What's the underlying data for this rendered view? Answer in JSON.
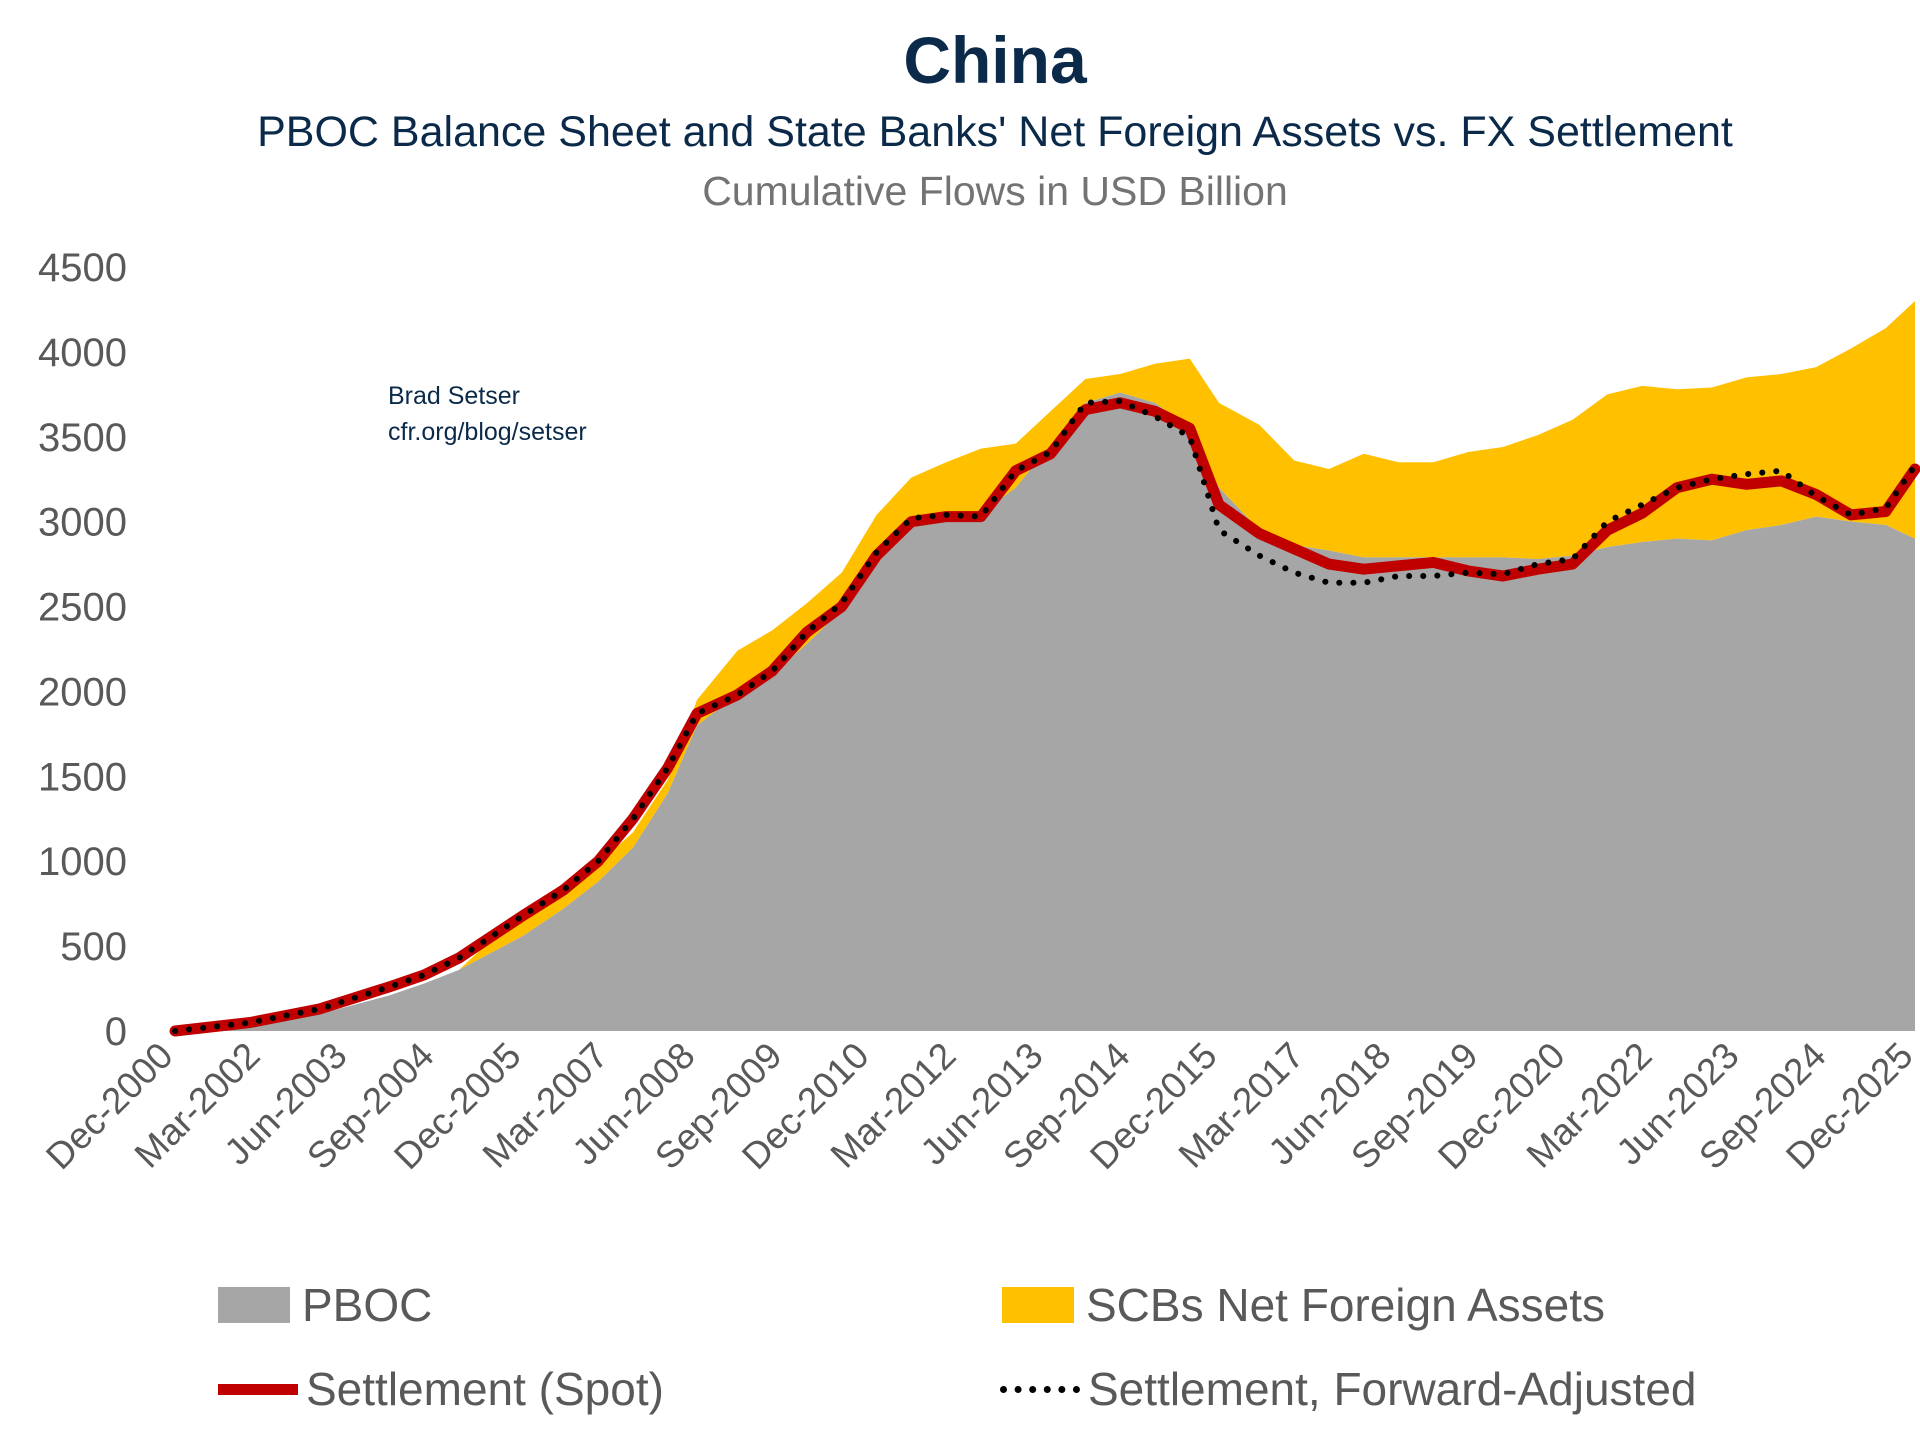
{
  "header": {
    "title": "China",
    "subtitle": "PBOC Balance Sheet and State Banks' Net Foreign Assets vs. FX Settlement",
    "units": "Cumulative Flows in USD Billion"
  },
  "attribution": {
    "author": "Brad Setser",
    "url": "cfr.org/blog/setser"
  },
  "colors": {
    "pboc": "#a6a6a6",
    "scb": "#ffc000",
    "settlement_spot": "#c00000",
    "settlement_forward": "#000000",
    "title": "#0b2a4a",
    "axis_text": "#595959"
  },
  "chart_data": {
    "type": "area",
    "title": "China",
    "subtitle": "PBOC Balance Sheet and State Banks' Net Foreign Assets vs. FX Settlement",
    "ylabel": "Cumulative Flows in USD Billion",
    "xlabel": "",
    "ylim": [
      0,
      4500
    ],
    "xlim": [
      2000.92,
      2025.92
    ],
    "yticks": [
      0,
      500,
      1000,
      1500,
      2000,
      2500,
      3000,
      3500,
      4000,
      4500
    ],
    "xtick_labels": [
      "Dec-2000",
      "Mar-2002",
      "Jun-2003",
      "Sep-2004",
      "Dec-2005",
      "Mar-2007",
      "Jun-2008",
      "Sep-2009",
      "Dec-2010",
      "Mar-2012",
      "Jun-2013",
      "Sep-2014",
      "Dec-2015",
      "Mar-2017",
      "Jun-2018",
      "Sep-2019",
      "Dec-2020",
      "Mar-2022",
      "Jun-2023",
      "Sep-2024",
      "Dec-2025"
    ],
    "xtick_values": [
      2000.92,
      2002.17,
      2003.42,
      2004.67,
      2005.92,
      2007.17,
      2008.42,
      2009.67,
      2010.92,
      2012.17,
      2013.42,
      2014.67,
      2015.92,
      2017.17,
      2018.42,
      2019.67,
      2020.92,
      2022.17,
      2023.42,
      2024.67,
      2025.92
    ],
    "grid": false,
    "legend_position": "bottom",
    "series": [
      {
        "name": "PBOC",
        "kind": "stacked-area",
        "x": [
          2000.92,
          2002.0,
          2003.0,
          2004.0,
          2004.5,
          2005.0,
          2005.92,
          2006.5,
          2007.0,
          2007.5,
          2008.0,
          2008.42,
          2009.0,
          2009.5,
          2010.0,
          2010.5,
          2011.0,
          2011.5,
          2012.0,
          2012.5,
          2013.0,
          2013.5,
          2014.0,
          2014.5,
          2015.0,
          2015.5,
          2015.92,
          2016.5,
          2017.0,
          2017.5,
          2018.0,
          2018.5,
          2019.0,
          2019.5,
          2020.0,
          2020.5,
          2021.0,
          2021.5,
          2022.0,
          2022.5,
          2023.0,
          2023.5,
          2024.0,
          2024.5,
          2025.0,
          2025.5,
          2025.92
        ],
        "values": [
          0,
          30,
          100,
          210,
          280,
          360,
          560,
          720,
          880,
          1080,
          1400,
          1800,
          1980,
          2100,
          2280,
          2480,
          2780,
          3020,
          3060,
          3050,
          3200,
          3450,
          3700,
          3760,
          3700,
          3550,
          3200,
          2950,
          2860,
          2830,
          2790,
          2790,
          2790,
          2790,
          2790,
          2780,
          2800,
          2850,
          2880,
          2900,
          2890,
          2950,
          2980,
          3030,
          3000,
          2980,
          2900
        ]
      },
      {
        "name": "SCBs Net Foreign Assets",
        "kind": "stacked-area",
        "x": [
          2000.92,
          2002.0,
          2003.0,
          2004.0,
          2004.5,
          2005.0,
          2005.92,
          2006.5,
          2007.0,
          2007.5,
          2008.0,
          2008.42,
          2009.0,
          2009.5,
          2010.0,
          2010.5,
          2011.0,
          2011.5,
          2012.0,
          2012.5,
          2013.0,
          2013.5,
          2014.0,
          2014.5,
          2015.0,
          2015.5,
          2015.92,
          2016.5,
          2017.0,
          2017.5,
          2018.0,
          2018.5,
          2019.0,
          2019.5,
          2020.0,
          2020.5,
          2021.0,
          2021.5,
          2022.0,
          2022.5,
          2023.0,
          2023.5,
          2024.0,
          2024.5,
          2025.0,
          2025.5,
          2025.92
        ],
        "values": [
          0,
          0,
          0,
          0,
          0,
          0,
          150,
          140,
          110,
          90,
          80,
          150,
          260,
          260,
          240,
          220,
          260,
          240,
          290,
          380,
          260,
          200,
          140,
          110,
          230,
          410,
          500,
          620,
          500,
          480,
          610,
          560,
          560,
          620,
          650,
          730,
          800,
          900,
          920,
          880,
          900,
          900,
          890,
          880,
          1020,
          1160,
          1400
        ]
      },
      {
        "name": "Settlement (Spot)",
        "kind": "line",
        "x": [
          2000.92,
          2002.0,
          2003.0,
          2004.0,
          2004.5,
          2005.0,
          2005.92,
          2006.5,
          2007.0,
          2007.5,
          2008.0,
          2008.42,
          2009.0,
          2009.5,
          2010.0,
          2010.5,
          2011.0,
          2011.5,
          2012.0,
          2012.5,
          2013.0,
          2013.5,
          2014.0,
          2014.5,
          2015.0,
          2015.5,
          2015.92,
          2016.5,
          2017.0,
          2017.5,
          2018.0,
          2018.5,
          2019.0,
          2019.5,
          2020.0,
          2020.5,
          2021.0,
          2021.5,
          2022.0,
          2022.5,
          2023.0,
          2023.5,
          2024.0,
          2024.5,
          2025.0,
          2025.5,
          2025.92
        ],
        "values": [
          0,
          50,
          130,
          260,
          330,
          430,
          680,
          830,
          1000,
          1250,
          1550,
          1870,
          1980,
          2120,
          2350,
          2500,
          2800,
          3000,
          3030,
          3030,
          3300,
          3400,
          3660,
          3700,
          3650,
          3550,
          3100,
          2930,
          2840,
          2750,
          2720,
          2740,
          2760,
          2710,
          2680,
          2720,
          2750,
          2950,
          3050,
          3200,
          3250,
          3220,
          3240,
          3160,
          3040,
          3060,
          3310
        ]
      },
      {
        "name": "Settlement, Forward-Adjusted",
        "kind": "line",
        "x": [
          2000.92,
          2002.0,
          2003.0,
          2004.0,
          2004.5,
          2005.0,
          2005.92,
          2006.5,
          2007.0,
          2007.5,
          2008.0,
          2008.42,
          2009.0,
          2009.5,
          2010.0,
          2010.5,
          2011.0,
          2011.5,
          2012.0,
          2012.5,
          2013.0,
          2013.5,
          2014.0,
          2014.5,
          2015.0,
          2015.5,
          2015.92,
          2016.5,
          2017.0,
          2017.5,
          2018.0,
          2018.5,
          2019.0,
          2019.5,
          2020.0,
          2020.5,
          2021.0,
          2021.5,
          2022.0,
          2022.5,
          2023.0,
          2023.5,
          2024.0,
          2024.5,
          2025.0,
          2025.5,
          2025.92
        ],
        "values": [
          0,
          50,
          130,
          260,
          330,
          430,
          680,
          830,
          1000,
          1250,
          1550,
          1870,
          1980,
          2120,
          2350,
          2520,
          2820,
          3020,
          3040,
          3030,
          3300,
          3410,
          3700,
          3710,
          3620,
          3500,
          2950,
          2800,
          2700,
          2640,
          2640,
          2680,
          2680,
          2700,
          2690,
          2750,
          2780,
          3000,
          3100,
          3200,
          3250,
          3280,
          3300,
          3150,
          3040,
          3080,
          3330
        ]
      }
    ]
  },
  "legend": {
    "pboc": "PBOC",
    "scb": "SCBs Net Foreign Assets",
    "settlement_spot": "Settlement (Spot)",
    "settlement_forward": "Settlement, Forward-Adjusted"
  }
}
